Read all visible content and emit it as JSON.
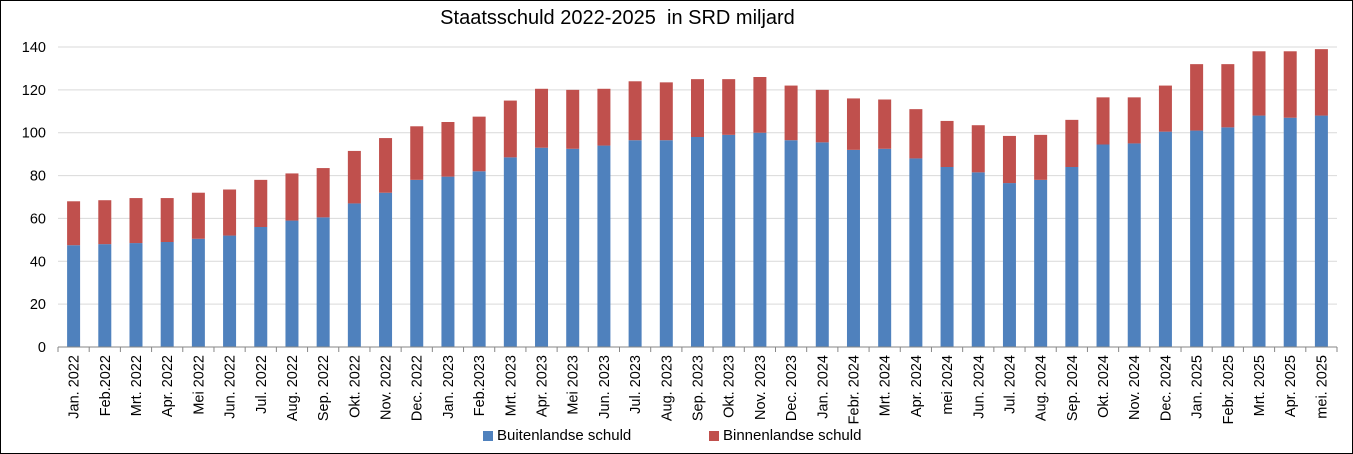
{
  "chart_data": {
    "type": "bar",
    "stacked": true,
    "title": "Staatsschuld 2022-2025  in SRD miljard",
    "xlabel": "",
    "ylabel": "",
    "ylim": [
      0,
      140
    ],
    "yticks": [
      0,
      20,
      40,
      60,
      80,
      100,
      120,
      140
    ],
    "grid": true,
    "legend_position": "bottom",
    "categories": [
      "Jan. 2022",
      "Feb.2022",
      "Mrt. 2022",
      "Apr. 2022",
      "Mei 2022",
      "Jun. 2022",
      "Jul. 2022",
      "Aug. 2022",
      "Sep. 2022",
      "Okt. 2022",
      "Nov. 2022",
      "Dec. 2022",
      "Jan. 2023",
      "Feb.2023",
      "Mrt. 2023",
      "Apr. 2023",
      "Mei 2023",
      "Jun. 2023",
      "Jul. 2023",
      "Aug. 2023",
      "Sep. 2023",
      "Okt. 2023",
      "Nov. 2023",
      "Dec. 2023",
      "Jan. 2024",
      "Febr. 2024",
      "Mrt. 2024",
      "Apr. 2024",
      "mei 2024",
      "Jun. 2024",
      "Jul. 2024",
      "Aug. 2024",
      "Sep. 2024",
      "Okt. 2024",
      "Nov. 2024",
      "Dec. 2024",
      "Jan. 2025",
      "Febr. 2025",
      "Mrt. 2025",
      "Apr. 2025",
      "mei. 2025"
    ],
    "series": [
      {
        "name": "Buitenlandse schuld",
        "color": "#4f81bd",
        "values": [
          47.5,
          48,
          48.5,
          49,
          50.5,
          52,
          56,
          59,
          60.5,
          67,
          72,
          78,
          79.5,
          82,
          88.5,
          93,
          92.5,
          94,
          96.5,
          96.5,
          98,
          99,
          100,
          96.5,
          95.5,
          92,
          92.5,
          88,
          84,
          81.5,
          76.5,
          78,
          84,
          94.5,
          95,
          100.5,
          101,
          102.5,
          108,
          107,
          108
        ]
      },
      {
        "name": "Binnenlandse schuld",
        "color": "#c0504d",
        "values": [
          20.5,
          20.5,
          21,
          20.5,
          21.5,
          21.5,
          22,
          22,
          23,
          24.5,
          25.5,
          25,
          25.5,
          25.5,
          26.5,
          27.5,
          27.5,
          26.5,
          27.5,
          27,
          27,
          26,
          26,
          25.5,
          24.5,
          24,
          23,
          23,
          21.5,
          22,
          22,
          21,
          22,
          22,
          21.5,
          21.5,
          31,
          29.5,
          30,
          31,
          31
        ]
      }
    ]
  }
}
